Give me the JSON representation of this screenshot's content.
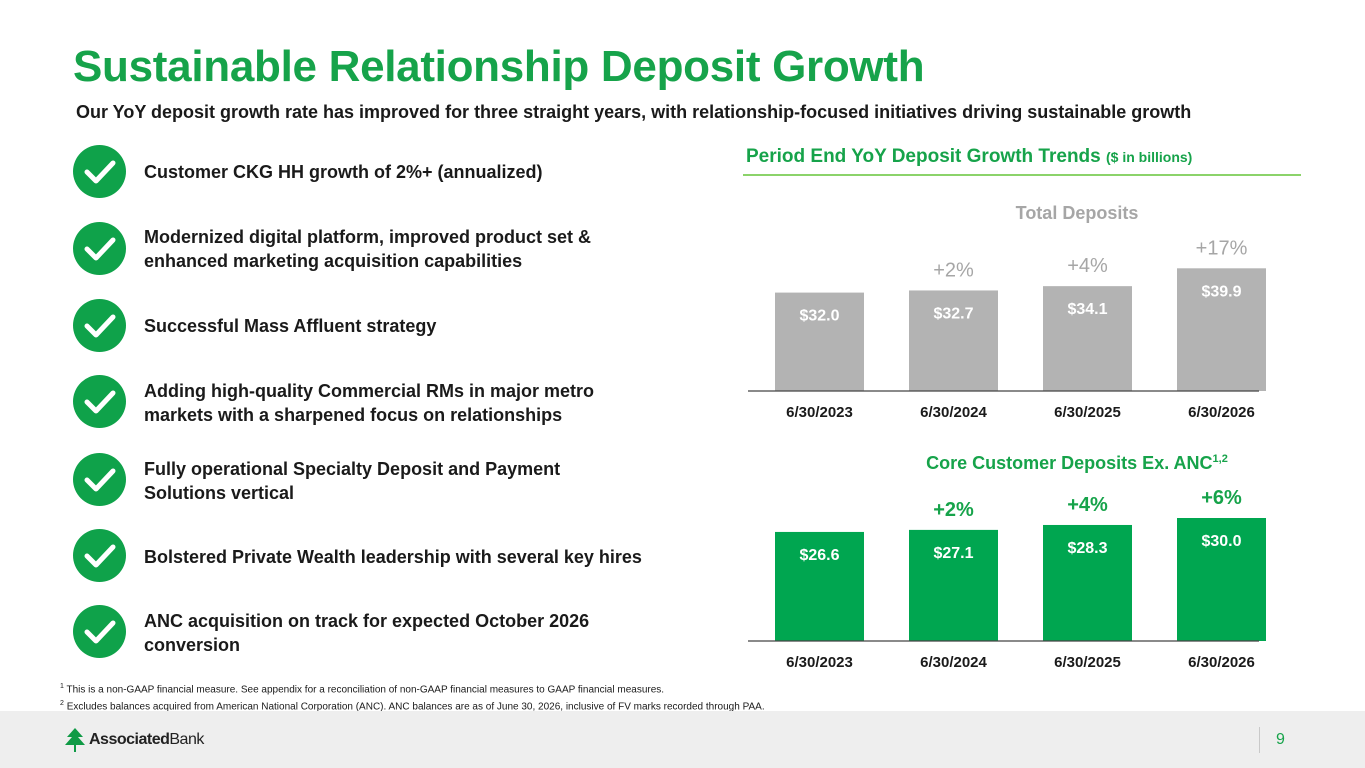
{
  "title": "Sustainable Relationship Deposit Growth",
  "subtitle": "Our YoY deposit growth rate has improved for three straight years, with relationship-focused initiatives driving sustainable growth",
  "bullets": [
    {
      "text": "Customer CKG HH growth of 2%+ (annualized)",
      "icon": "checkmark-icon"
    },
    {
      "text": "Modernized digital platform, improved product set &\nenhanced marketing acquisition capabilities",
      "icon": "checkmark-icon"
    },
    {
      "text": "Successful Mass Affluent strategy",
      "icon": "checkmark-icon"
    },
    {
      "text": "Adding high-quality Commercial RMs in major metro\nmarkets with a sharpened focus on relationships",
      "icon": "checkmark-icon"
    },
    {
      "text": "Fully operational Specialty Deposit and Payment\nSolutions vertical",
      "icon": "checkmark-icon"
    },
    {
      "text": "Bolstered Private Wealth leadership with several key hires",
      "icon": "checkmark-icon"
    },
    {
      "text": "ANC acquisition on track for expected October 2026\nconversion",
      "icon": "checkmark-icon"
    }
  ],
  "charts_header": {
    "title": "Period End YoY Deposit Growth Trends",
    "unit": "($ in billions)"
  },
  "chart_data": [
    {
      "type": "bar",
      "title": "Total Deposits",
      "title_sup": "",
      "categories": [
        "6/30/2023",
        "6/30/2024",
        "6/30/2025",
        "6/30/2026"
      ],
      "values": [
        32.0,
        32.7,
        34.1,
        39.9
      ],
      "value_labels": [
        "$32.0",
        "$32.7",
        "$34.1",
        "$39.9"
      ],
      "growth_labels": [
        "",
        "+2%",
        "+4%",
        "+17%"
      ],
      "bar_color": "#b3b3b3",
      "title_color": "#a6a6a6",
      "growth_color": "#a6a6a6",
      "growth_bold": false,
      "ylim": [
        0,
        40
      ]
    },
    {
      "type": "bar",
      "title": "Core Customer Deposits Ex. ANC",
      "title_sup": "1,2",
      "categories": [
        "6/30/2023",
        "6/30/2024",
        "6/30/2025",
        "6/30/2026"
      ],
      "values": [
        26.6,
        27.1,
        28.3,
        30.0
      ],
      "value_labels": [
        "$26.6",
        "$27.1",
        "$28.3",
        "$30.0"
      ],
      "growth_labels": [
        "",
        "+2%",
        "+4%",
        "+6%"
      ],
      "bar_color": "#00a650",
      "title_color": "#16a34a",
      "growth_color": "#16a34a",
      "growth_bold": true,
      "ylim": [
        0,
        30
      ]
    }
  ],
  "footnotes": [
    {
      "num": "1",
      "text": "This is a non-GAAP financial measure. See appendix for a reconciliation of non-GAAP financial measures to GAAP financial measures."
    },
    {
      "num": "2",
      "text": "Excludes balances acquired from American National Corporation (ANC). ANC balances are as of June 30, 2026, inclusive of FV marks recorded through PAA."
    }
  ],
  "footer": {
    "logo_bold": "Associated",
    "logo_regular": "Bank",
    "logo_icon": "associated-bank-tree-icon",
    "page_number": "9"
  }
}
